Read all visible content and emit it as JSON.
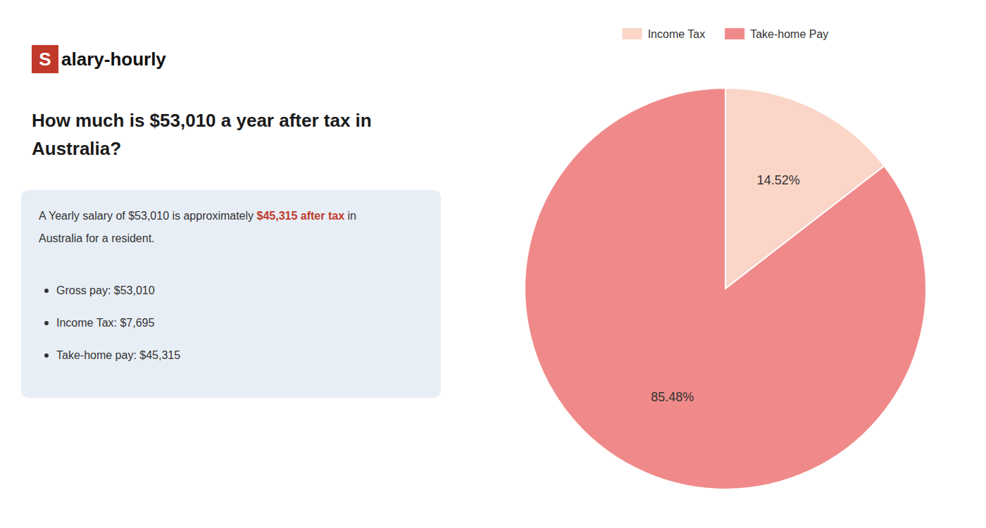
{
  "chart_data": {
    "type": "pie",
    "title": [
      "How much is $53,010 a year after tax in",
      "Australia?"
    ],
    "annotations": [
      [
        {
          "text": "S",
          "color": "#c0392b"
        },
        {
          "text": "alary-hourly"
        }
      ],
      [
        {
          "text": "A Yearly salary of $53,010 is approximately "
        },
        {
          "text": "$45,315 after tax",
          "color": "#c0392b"
        },
        {
          "text": " in"
        }
      ],
      [
        {
          "text": "Australia for a resident."
        }
      ],
      [
        {
          "text": "Gross pay: $53,010"
        }
      ],
      [
        {
          "text": "Income Tax: $7,695"
        }
      ],
      [
        {
          "text": "Take-home pay: $45,315"
        }
      ]
    ],
    "categories": [
      "Income Tax",
      "Take-home Pay"
    ],
    "values": [
      14.52,
      85.48
    ],
    "value_labels": [
      "14.52%",
      "85.48%"
    ],
    "colors": [
      "#fad5c8",
      "#f08a8a"
    ],
    "data_labels": true,
    "legend": "top"
  }
}
